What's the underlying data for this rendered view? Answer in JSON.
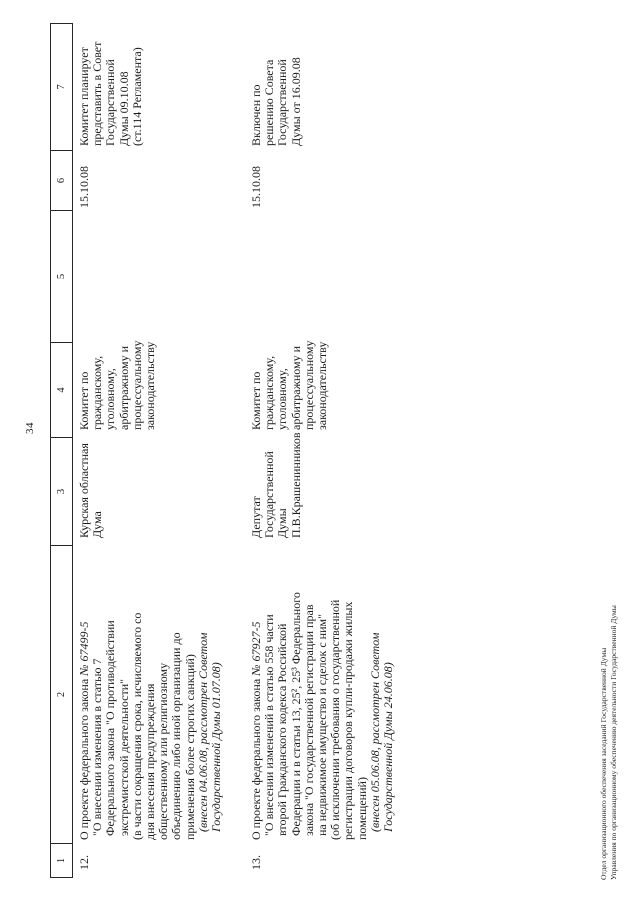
{
  "page": {
    "number": "34"
  },
  "table": {
    "headers": [
      "1",
      "2",
      "3",
      "4",
      "5",
      "6",
      "7"
    ],
    "rows": [
      {
        "num": "12.",
        "title_lines": [
          {
            "p": [
              {
                "t": "О проекте федерального закона "
              },
              {
                "t": "№ 67499-5",
                "i": true
              }
            ]
          },
          {
            "t": "\"О внесении изменения в статью 7",
            "ind": 4
          },
          {
            "t": "Федерального закона \"О противодействии",
            "ind": 4
          },
          {
            "t": "экстремистской деятельности\"",
            "ind": 4
          },
          {
            "t": "(в части сокращения срока, исчисляемого со"
          },
          {
            "t": "дня внесения предупреждения"
          },
          {
            "t": "общественному или религиозному"
          },
          {
            "t": "объединению либо иной организации до"
          },
          {
            "t": "применения более строгих санкций)"
          },
          {
            "t": "(внесен 04.06.08, рассмотрен Советом",
            "i": true,
            "ind": 8
          },
          {
            "t": "Государственной Думы 01.07.08)",
            "i": true,
            "ind": 8
          }
        ],
        "initiator_lines": [
          {
            "t": "Курская областная"
          },
          {
            "t": "Дума"
          }
        ],
        "committee_lines": [
          {
            "t": "Комитет по"
          },
          {
            "t": "гражданскому,"
          },
          {
            "t": "уголовному,"
          },
          {
            "t": "арбитражному и"
          },
          {
            "t": "процессуальному"
          },
          {
            "t": "законодательству"
          }
        ],
        "date": "15.10.08",
        "status_lines": [
          {
            "t": "Комитет планирует"
          },
          {
            "t": "представить в Совет"
          },
          {
            "t": "Государственной"
          },
          {
            "t": "Думы 09.10.08"
          },
          {
            "t": "(ст.114 Регламента)"
          }
        ]
      },
      {
        "num": "13.",
        "title_lines": [
          {
            "p": [
              {
                "t": "О проекте федерального закона "
              },
              {
                "t": "№ 67927-5",
                "i": true
              }
            ]
          },
          {
            "t": "\"О внесении изменений в статью 558 части",
            "ind": 4
          },
          {
            "t": "второй Гражданского кодекса Российской",
            "ind": 4
          },
          {
            "t": "Федерации и в статьи 13, 25², 25³ Федерального",
            "ind": 4
          },
          {
            "t": "закона \"О государственной регистрации прав",
            "ind": 4
          },
          {
            "t": "на недвижимое имущество и сделок с ним\"",
            "ind": 4
          },
          {
            "t": "(об исключении требования о государственной"
          },
          {
            "t": "регистрации договоров купли-продажи жилых"
          },
          {
            "t": "помещений)"
          },
          {
            "t": "(внесен 05.06.08, рассмотрен Советом",
            "i": true,
            "ind": 8
          },
          {
            "t": "Государственной Думы 24.06.08)",
            "i": true,
            "ind": 8
          }
        ],
        "initiator_lines": [
          {
            "t": "Депутат"
          },
          {
            "t": "Государственной"
          },
          {
            "t": "Думы"
          },
          {
            "t": "П.В.Крашенинников"
          }
        ],
        "committee_lines": [
          {
            "t": "Комитет по"
          },
          {
            "t": "гражданскому,"
          },
          {
            "t": "уголовному,"
          },
          {
            "t": "арбитражному и"
          },
          {
            "t": "процессуальному"
          },
          {
            "t": "законодательству"
          }
        ],
        "date": "15.10.08",
        "status_lines": [
          {
            "t": "Включен по"
          },
          {
            "t": "решению Совета"
          },
          {
            "t": "Государственной"
          },
          {
            "t": "Думы от 16.09.08"
          }
        ]
      }
    ]
  },
  "footer": {
    "line1": "Отдел организационного обеспечения заседаний Государственной Думы",
    "line2": "Управления по организационному обеспечению деятельности Государственной Думы"
  }
}
